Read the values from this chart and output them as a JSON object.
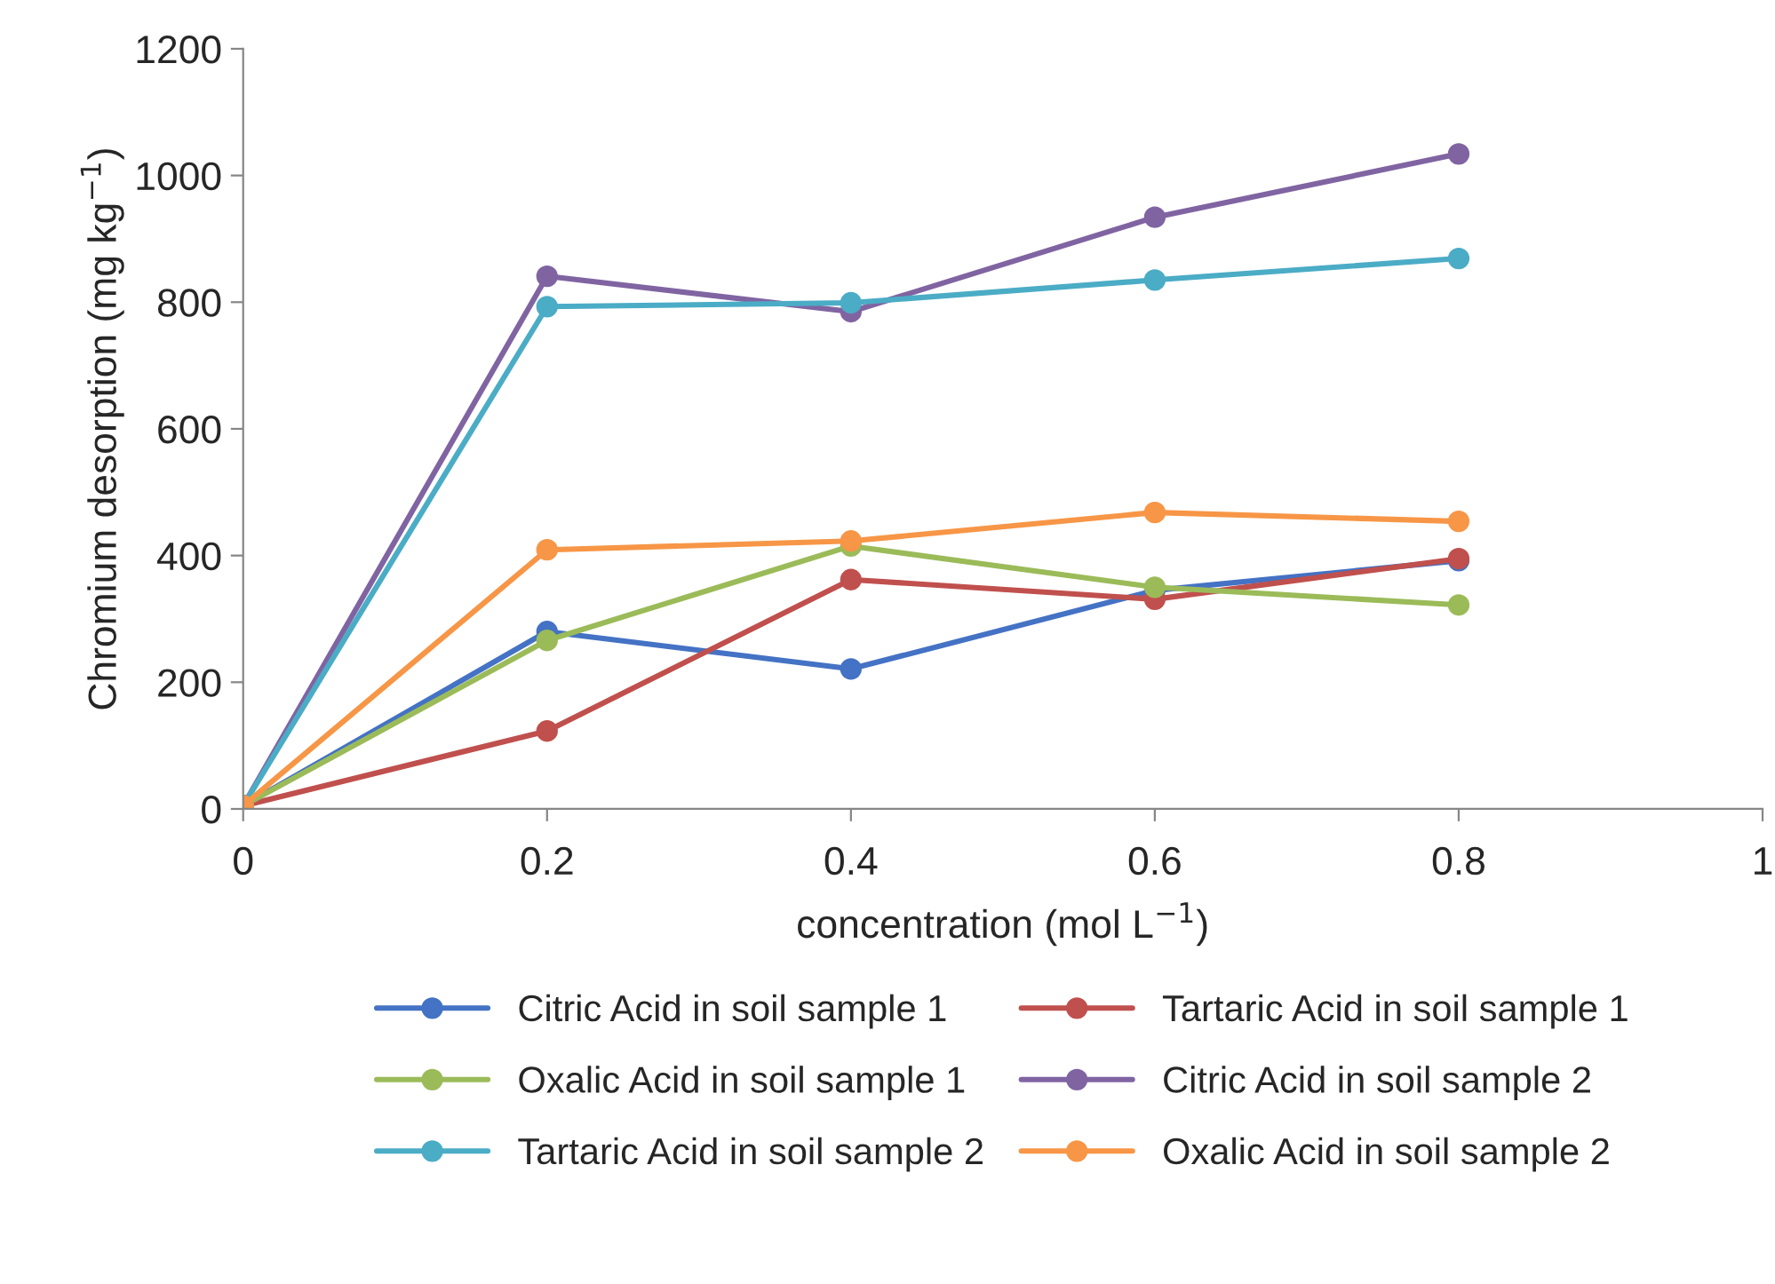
{
  "chart_data": {
    "type": "line",
    "xlabel": "concentration (mol L$^{−1}$)",
    "ylabel": "Chromium desorption (mg kg$^{−1}$)",
    "x": [
      0,
      0.2,
      0.4,
      0.6,
      0.8
    ],
    "series": [
      {
        "name": "Citric Acid in soil sample 1",
        "color": "#4472c4",
        "values": [
          5,
          280,
          221,
          345,
          392
        ]
      },
      {
        "name": "Tartaric Acid in soil sample 1",
        "color": "#c0504d",
        "values": [
          5,
          123,
          362,
          331,
          395
        ]
      },
      {
        "name": "Oxalic Acid in soil sample 1",
        "color": "#9bbb59",
        "values": [
          5,
          266,
          415,
          350,
          322
        ]
      },
      {
        "name": "Citric Acid in soil sample 2",
        "color": "#8064a2",
        "values": [
          5,
          841,
          785,
          934,
          1034
        ]
      },
      {
        "name": "Tartaric Acid in soil sample 2",
        "color": "#4bacc6",
        "values": [
          5,
          793,
          799,
          835,
          869
        ]
      },
      {
        "name": "Oxalic Acid in soil sample 2",
        "color": "#f79646",
        "values": [
          5,
          409,
          423,
          468,
          454
        ]
      }
    ],
    "xlim": [
      0,
      1
    ],
    "xticks": [
      0,
      0.2,
      0.4,
      0.6,
      0.8,
      1
    ],
    "ylim": [
      0,
      1200
    ],
    "yticks": [
      0,
      200,
      400,
      600,
      800,
      1000,
      1200
    ],
    "marker": "circle",
    "line_style": "solid",
    "grid": false,
    "legend": "bottom"
  }
}
